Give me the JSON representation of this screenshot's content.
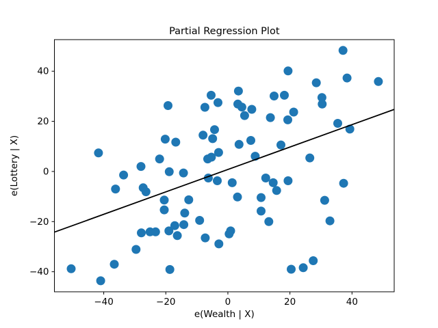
{
  "chart_data": {
    "type": "scatter",
    "title": "Partial Regression Plot",
    "xlabel": "e(Wealth | X)",
    "ylabel": "e(Lottery | X)",
    "xlim": [
      -55.9,
      53.6
    ],
    "ylim": [
      -48.0,
      52.6
    ],
    "xticks": [
      -40,
      -20,
      0,
      20,
      40
    ],
    "yticks": [
      -40,
      -20,
      0,
      20,
      40
    ],
    "grid": false,
    "legend": null,
    "marker_color": "#1f77b4",
    "marker_radius_px": 6.5,
    "line_color": "#000000",
    "regression_line": {
      "slope": 0.447,
      "intercept": 0.8
    },
    "points": [
      [
        -50.5,
        -38.8
      ],
      [
        -41.7,
        7.4
      ],
      [
        -41.0,
        -43.6
      ],
      [
        -36.6,
        -37.0
      ],
      [
        -36.2,
        -7.0
      ],
      [
        -33.6,
        -1.4
      ],
      [
        -29.6,
        -31.1
      ],
      [
        -28.0,
        2.0
      ],
      [
        -27.9,
        -24.5
      ],
      [
        -27.3,
        -6.5
      ],
      [
        -26.4,
        -8.1
      ],
      [
        -25.1,
        -24.1
      ],
      [
        -23.3,
        -24.1
      ],
      [
        -22.0,
        5.0
      ],
      [
        -20.5,
        -11.4
      ],
      [
        -20.5,
        -15.3
      ],
      [
        -20.2,
        12.9
      ],
      [
        -19.3,
        26.3
      ],
      [
        -19.0,
        -23.7
      ],
      [
        -18.9,
        -0.1
      ],
      [
        -18.7,
        -39.1
      ],
      [
        -17.1,
        -21.6
      ],
      [
        -16.8,
        11.7
      ],
      [
        -16.3,
        -25.6
      ],
      [
        -14.3,
        -0.6
      ],
      [
        -14.2,
        -21.2
      ],
      [
        -13.9,
        -16.6
      ],
      [
        -12.6,
        -11.3
      ],
      [
        -9.1,
        -19.5
      ],
      [
        -8.0,
        14.5
      ],
      [
        -7.4,
        25.6
      ],
      [
        -7.3,
        -26.5
      ],
      [
        -6.5,
        5.0
      ],
      [
        -6.3,
        -2.6
      ],
      [
        -5.4,
        30.4
      ],
      [
        -5.3,
        5.7
      ],
      [
        -4.9,
        13.1
      ],
      [
        -4.3,
        16.7
      ],
      [
        -3.4,
        -3.7
      ],
      [
        -3.2,
        27.5
      ],
      [
        -3.0,
        7.6
      ],
      [
        -2.9,
        -28.9
      ],
      [
        0.4,
        -24.9
      ],
      [
        0.9,
        -23.7
      ],
      [
        1.4,
        -4.5
      ],
      [
        3.1,
        -10.2
      ],
      [
        3.2,
        26.9
      ],
      [
        3.4,
        32.1
      ],
      [
        3.6,
        10.8
      ],
      [
        4.5,
        25.7
      ],
      [
        5.4,
        22.3
      ],
      [
        7.4,
        12.4
      ],
      [
        7.7,
        24.8
      ],
      [
        8.8,
        6.1
      ],
      [
        10.7,
        -10.4
      ],
      [
        10.7,
        -15.8
      ],
      [
        12.2,
        -2.6
      ],
      [
        13.2,
        -20.0
      ],
      [
        13.7,
        21.5
      ],
      [
        14.6,
        -4.5
      ],
      [
        14.9,
        30.1
      ],
      [
        15.7,
        -7.6
      ],
      [
        17.1,
        10.6
      ],
      [
        18.2,
        30.4
      ],
      [
        19.3,
        20.6
      ],
      [
        19.4,
        40.1
      ],
      [
        19.4,
        -3.7
      ],
      [
        20.4,
        -39.0
      ],
      [
        21.2,
        23.7
      ],
      [
        24.3,
        -38.4
      ],
      [
        26.4,
        5.4
      ],
      [
        27.5,
        -35.6
      ],
      [
        28.5,
        35.4
      ],
      [
        30.3,
        29.5
      ],
      [
        30.4,
        26.9
      ],
      [
        31.2,
        -11.5
      ],
      [
        32.9,
        -19.7
      ],
      [
        35.4,
        19.2
      ],
      [
        37.1,
        48.3
      ],
      [
        37.3,
        -4.7
      ],
      [
        38.4,
        37.3
      ],
      [
        39.3,
        16.9
      ],
      [
        48.5,
        35.9
      ]
    ]
  }
}
